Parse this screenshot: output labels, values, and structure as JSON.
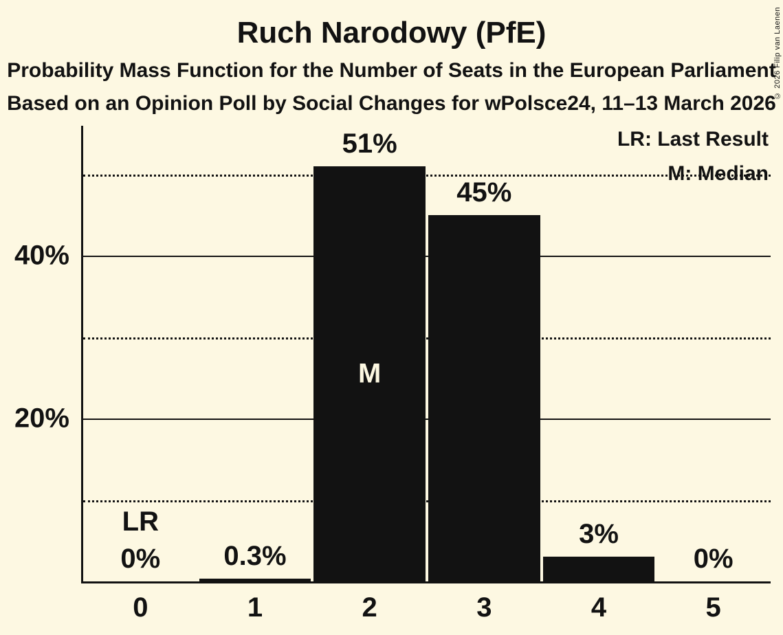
{
  "header": {
    "title": "Ruch Narodowy (PfE)",
    "subtitle1": "Probability Mass Function for the Number of Seats in the European Parliament",
    "subtitle2": "Based on an Opinion Poll by Social Changes for wPolsce24, 11–13 March 2026"
  },
  "legend": {
    "lr_label": "LR: Last Result",
    "m_label": "M: Median"
  },
  "copyright": "© 2026 Filip van Laenen",
  "colors": {
    "background": "#FDF8E2",
    "bar": "#121212",
    "text": "#121212",
    "median_label_on_bar": "#FDF8E2"
  },
  "chart_data": {
    "type": "bar",
    "title": "Ruch Narodowy (PfE)",
    "xlabel": "",
    "ylabel": "",
    "categories": [
      "0",
      "1",
      "2",
      "3",
      "4",
      "5"
    ],
    "values": [
      0,
      0.3,
      51,
      45,
      3,
      0
    ],
    "value_labels": [
      "0%",
      "0.3%",
      "51%",
      "45%",
      "3%",
      "0%"
    ],
    "ylim": [
      0,
      56
    ],
    "yticks_solid": [
      {
        "value": 20,
        "label": "20%"
      },
      {
        "value": 40,
        "label": "40%"
      }
    ],
    "yticks_dotted": [
      10,
      30,
      50
    ],
    "legend_position": "top-right",
    "grid": "horizontal-only",
    "markers": {
      "last_result_seat": "0",
      "last_result_label": "LR",
      "median_seat": "2",
      "median_label": "M"
    }
  }
}
